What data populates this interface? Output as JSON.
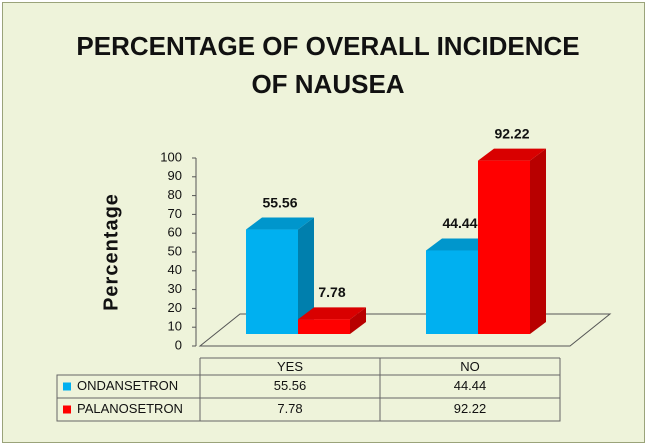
{
  "chart_data": {
    "type": "bar3d",
    "title": "PERCENTAGE OF OVERALL INCIDENCE OF NAUSEA",
    "y_label": "Percentage",
    "categories": [
      "YES",
      "NO"
    ],
    "series": [
      {
        "name": "ONDANSETRON",
        "color": "#00b0f0",
        "values": [
          55.56,
          44.44
        ]
      },
      {
        "name": "PALANOSETRON",
        "color": "#ff0000",
        "values": [
          7.78,
          92.22
        ]
      }
    ],
    "ylim": [
      0,
      100
    ],
    "yticks": [
      0,
      10,
      20,
      30,
      40,
      50,
      60,
      70,
      80,
      90,
      100
    ],
    "data_table": true
  }
}
